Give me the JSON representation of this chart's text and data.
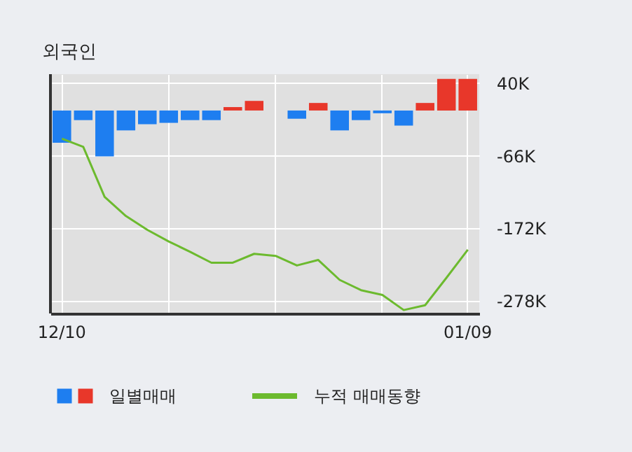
{
  "chart_data": {
    "type": "bar",
    "title": "외국인",
    "categories": [
      "12/10",
      null,
      null,
      null,
      null,
      null,
      null,
      null,
      null,
      null,
      null,
      null,
      null,
      null,
      null,
      null,
      null,
      null,
      null,
      "01/09"
    ],
    "series": [
      {
        "name": "일별매매",
        "colors": [
          "#1e7ef0",
          "#1e7ef0",
          "#1e7ef0",
          "#1e7ef0",
          "#1e7ef0",
          "#1e7ef0",
          "#1e7ef0",
          "#1e7ef0",
          "#e8372a",
          "#e8372a",
          "#e8372a",
          "#1e7ef0",
          "#e8372a",
          "#1e7ef0",
          "#1e7ef0",
          "#1e7ef0",
          "#1e7ef0",
          "#e8372a",
          "#e8372a",
          "#e8372a"
        ],
        "values": [
          -47,
          -14,
          -67,
          -29,
          -20,
          -18,
          -14,
          -14,
          5,
          14,
          0,
          -12,
          11,
          -29,
          -14,
          -4,
          -22,
          11,
          46,
          46
        ]
      },
      {
        "name": "누적 매매동향",
        "type": "line",
        "color": "#6cba2e",
        "values": [
          -41,
          -53,
          -126,
          -154,
          -174,
          -191,
          -206,
          -222,
          -222,
          -209,
          -212,
          -226,
          -218,
          -247,
          -262,
          -269,
          -291,
          -284,
          -244,
          -203
        ]
      }
    ],
    "ylim": [
      -296,
      53
    ],
    "yticks": [
      {
        "value": 40,
        "label": "40K"
      },
      {
        "value": -66,
        "label": "-66K"
      },
      {
        "value": -172,
        "label": "-172K"
      },
      {
        "value": -278,
        "label": "-278K"
      }
    ],
    "grid": true,
    "legend": "bottom"
  }
}
